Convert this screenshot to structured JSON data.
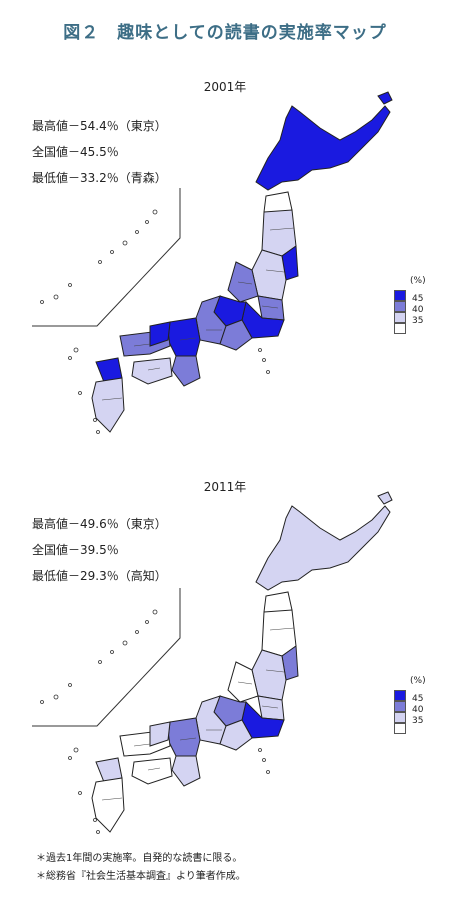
{
  "title": "図２　趣味としての読書の実施率マップ",
  "maps": [
    {
      "year": "2001年",
      "max_label": "最高値－54.4％（東京）",
      "national_label": "全国値－45.5％",
      "min_label": "最低値－33.2％（青森）",
      "max_value": 54.4,
      "national_value": 45.5,
      "min_value": 33.2
    },
    {
      "year": "2011年",
      "max_label": "最高値－49.6％（東京）",
      "national_label": "全国値－39.5％",
      "min_label": "最低値－29.3％（高知）",
      "max_value": 49.6,
      "national_value": 39.5,
      "min_value": 29.3
    }
  ],
  "legend": {
    "unit": "(%)",
    "bins": [
      {
        "label": "45",
        "color": "#1a1ae0"
      },
      {
        "label": "40",
        "color": "#7c7cd8"
      },
      {
        "label": "35",
        "color": "#d4d4f2"
      },
      {
        "label": "",
        "color": "#ffffff"
      }
    ]
  },
  "notes": [
    "＊過去1年間の実施率。自発的な読書に限る。",
    "＊総務省『社会生活基本調査』より筆者作成。"
  ]
}
